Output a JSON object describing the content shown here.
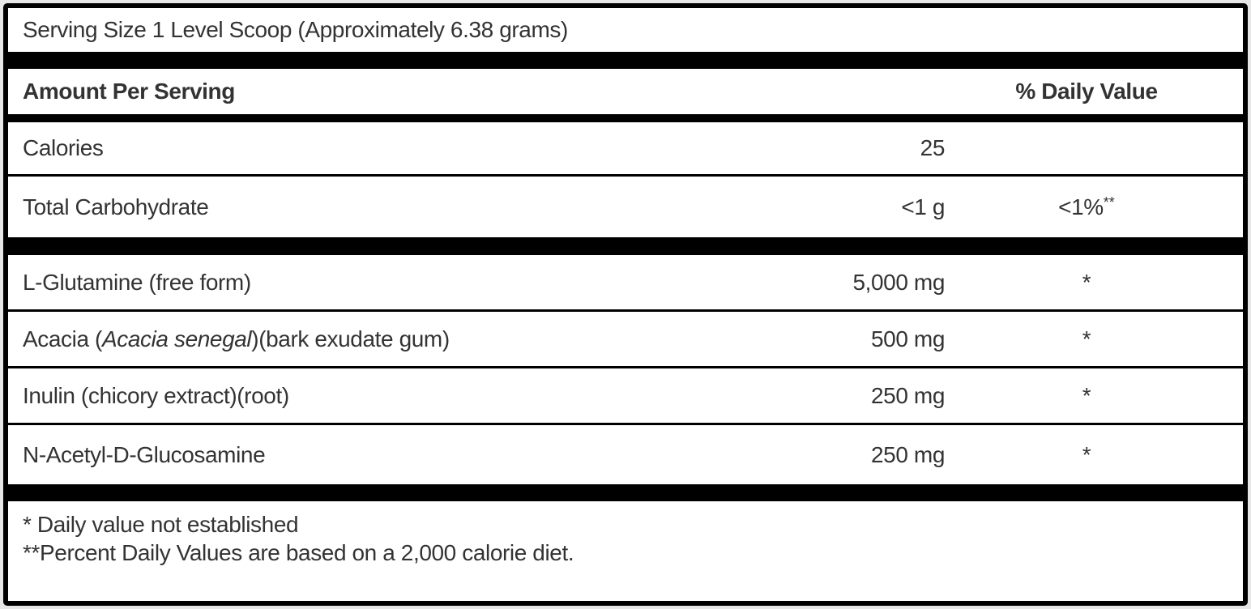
{
  "label": {
    "serving_size": "Serving Size 1 Level Scoop (Approximately 6.38 grams)",
    "header": {
      "amount_per_serving": "Amount Per Serving",
      "daily_value": "% Daily Value"
    },
    "rows": {
      "calories": {
        "name": "Calories",
        "amount": "25",
        "dv": ""
      },
      "total_carbohydrate": {
        "name": "Total Carbohydrate",
        "amount": "<1 g",
        "dv": "<1%",
        "dv_sup": "**"
      }
    },
    "ingredients": [
      {
        "name_prefix": "L-Glutamine (free form)",
        "name_italic": "",
        "name_suffix": "",
        "amount": "5,000 mg",
        "dv": "*"
      },
      {
        "name_prefix": "Acacia (",
        "name_italic": "Acacia senegal",
        "name_suffix": ")(bark exudate gum)",
        "amount": "500 mg",
        "dv": "*"
      },
      {
        "name_prefix": "Inulin (chicory extract)(root)",
        "name_italic": "",
        "name_suffix": "",
        "amount": "250 mg",
        "dv": "*"
      },
      {
        "name_prefix": "N-Acetyl-D-Glucosamine",
        "name_italic": "",
        "name_suffix": "",
        "amount": "250 mg",
        "dv": "*"
      }
    ],
    "footnotes": [
      "* Daily value not established",
      "**Percent Daily Values are based on a 2,000 calorie diet."
    ],
    "colors": {
      "text": "#333333",
      "rule": "#000000",
      "surface": "#ffffff",
      "page_background": "#e7e7e7"
    }
  }
}
